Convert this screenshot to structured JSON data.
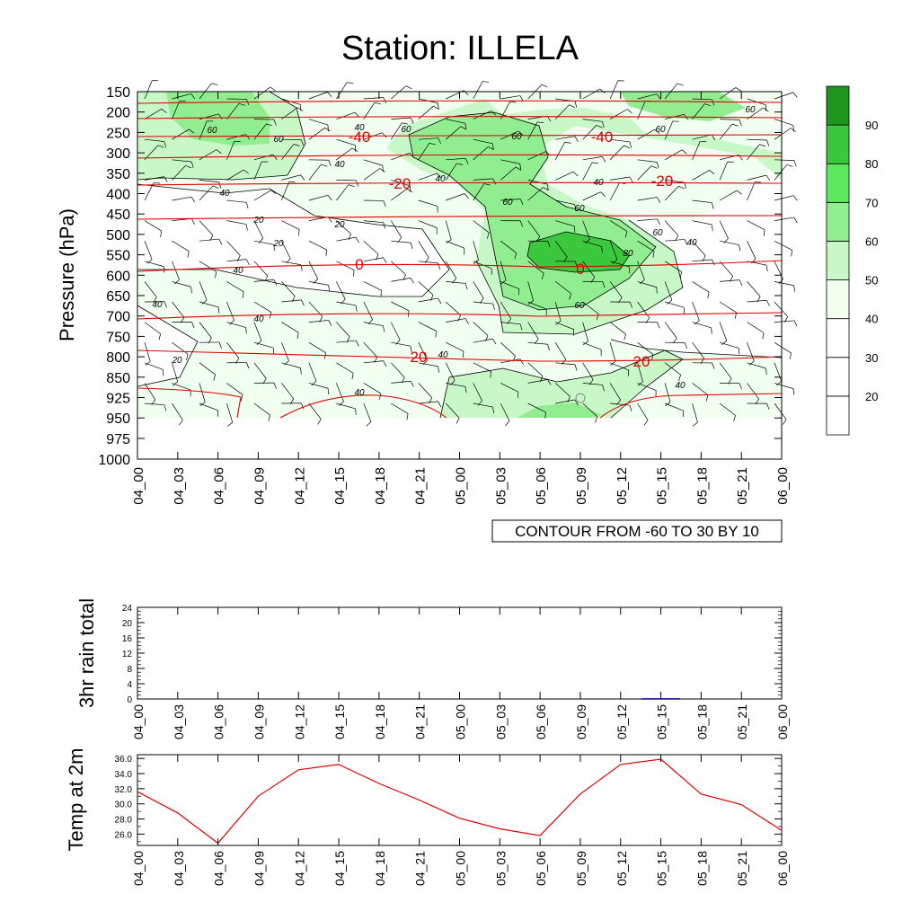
{
  "title": "Station: ILLELA",
  "x_ticks": [
    "04_00",
    "04_03",
    "04_06",
    "04_09",
    "04_12",
    "04_15",
    "04_18",
    "04_21",
    "05_00",
    "05_03",
    "05_06",
    "05_09",
    "05_12",
    "05_15",
    "05_18",
    "05_21",
    "06_00"
  ],
  "chart_data": [
    {
      "type": "heatmap",
      "name": "humidity-pressure-section",
      "ylabel": "Pressure (hPa)",
      "y_ticks": [
        "150",
        "200",
        "250",
        "300",
        "350",
        "400",
        "450",
        "500",
        "550",
        "600",
        "650",
        "700",
        "750",
        "800",
        "850",
        "925",
        "950",
        "975",
        "1000"
      ],
      "contour_info": "CONTOUR FROM -60 TO 30 BY 10",
      "colorbar": {
        "labels": [
          "20",
          "30",
          "40",
          "50",
          "60",
          "70",
          "80",
          "90"
        ],
        "colors": [
          "#ffffff",
          "#ffffff",
          "#ffffff",
          "#f0fff0",
          "#c8f8c8",
          "#90ee90",
          "#5ce85c",
          "#3cc83c",
          "#1e961e"
        ]
      },
      "temperature_contour_labels": [
        "-40",
        "-40",
        "-20",
        "-20",
        "0",
        "0",
        "20",
        "20"
      ],
      "humidity_contour_labels": [
        "60",
        "60",
        "60",
        "60",
        "60",
        "60",
        "60",
        "60",
        "60",
        "60",
        "40",
        "40",
        "40",
        "40",
        "40",
        "40",
        "40",
        "40",
        "40",
        "40",
        "40",
        "40",
        "20",
        "20",
        "20",
        "20",
        "80"
      ],
      "colors": {
        "fill_light": "#f0fff0",
        "fill_mid": "#c8f8c8",
        "fill_green": "#90ee90",
        "fill_strong": "#3cc83c",
        "fill_dark": "#1e961e",
        "temp_line": "#e00000"
      }
    },
    {
      "type": "bar",
      "name": "rain-3hr",
      "ylabel": "3hr rain total",
      "y_ticks": [
        "0",
        "4",
        "8",
        "12",
        "16",
        "20",
        "24"
      ],
      "ylim": [
        0,
        24
      ],
      "values": [
        0,
        0,
        0,
        0,
        0,
        0,
        0,
        0,
        0,
        0,
        0,
        0,
        0,
        0.2,
        0,
        0,
        0
      ],
      "bar_color": "#00008b"
    },
    {
      "type": "line",
      "name": "temp-2m",
      "ylabel": "Temp at 2m",
      "y_ticks": [
        "26.0",
        "28.0",
        "30.0",
        "32.0",
        "34.0",
        "36.0"
      ],
      "ylim": [
        24.5,
        36.5
      ],
      "values": [
        31.6,
        28.8,
        24.8,
        31.0,
        34.5,
        35.2,
        32.7,
        30.5,
        28.1,
        26.7,
        25.8,
        31.3,
        35.2,
        35.9,
        31.3,
        29.9,
        26.5
      ],
      "line_color": "#e00000"
    }
  ]
}
